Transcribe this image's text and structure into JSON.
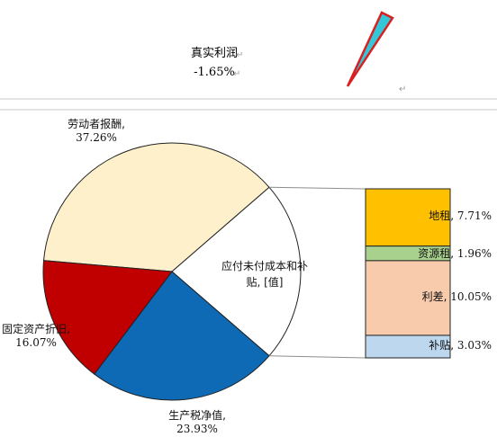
{
  "top_callout": {
    "label": "真实利润",
    "value": "-1.65%"
  },
  "colors": {
    "callout_fill": "#34c7d9",
    "callout_stroke": "#d92020",
    "divider": "#c8c8c8",
    "pie_outline": "#222222"
  },
  "chart_data": {
    "type": "bar-of-pie",
    "unit": "%",
    "pie": [
      {
        "label": "劳动者报酬,",
        "value_text": "37.26%",
        "value": 37.26,
        "color": "#fff0cc"
      },
      {
        "label": "应付未付成本和补贴, [值]",
        "label_line1": "应付未付成本和补",
        "label_line2": "贴, [值]",
        "value": 22.75,
        "color": "#ffffff"
      },
      {
        "label": "生产税净值,",
        "value_text": "23.93%",
        "value": 23.93,
        "color": "#0f6ab5"
      },
      {
        "label": "固定资产折旧,",
        "value_text": "16.07%",
        "value": 16.07,
        "color": "#c00000"
      }
    ],
    "bar": [
      {
        "label": "地租,",
        "value_text": "7.71%",
        "value": 7.71,
        "color": "#ffc000"
      },
      {
        "label": "资源租,",
        "value_text": "1.96%",
        "value": 1.96,
        "color": "#a9d18e"
      },
      {
        "label": "利差,",
        "value_text": "10.05%",
        "value": 10.05,
        "color": "#f8cbad"
      },
      {
        "label": "补贴,",
        "value_text": "3.03%",
        "value": 3.03,
        "color": "#bdd7ee"
      }
    ]
  }
}
